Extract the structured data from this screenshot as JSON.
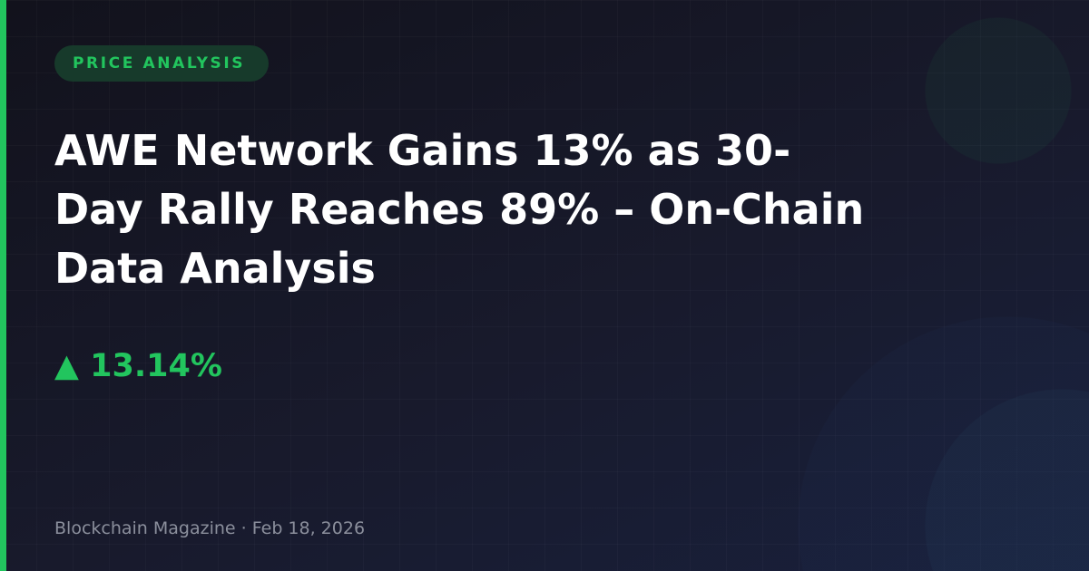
{
  "badge": {
    "label": "PRICE ANALYSIS"
  },
  "headline": {
    "text": "AWE Network Gains 13% as 30-Day Rally Reaches 89% – On-Chain Data Analysis"
  },
  "price_change": {
    "arrow": "▲",
    "value": "13.14%",
    "direction": "up",
    "icon": "triangle-up-icon"
  },
  "footer": {
    "publisher": "Blockchain Magazine",
    "separator": "·",
    "date": "Feb 18, 2026"
  },
  "colors": {
    "accent": "#22c55e",
    "background": "#15161f",
    "text": "#ffffff",
    "muted": "#8b8f9c"
  }
}
